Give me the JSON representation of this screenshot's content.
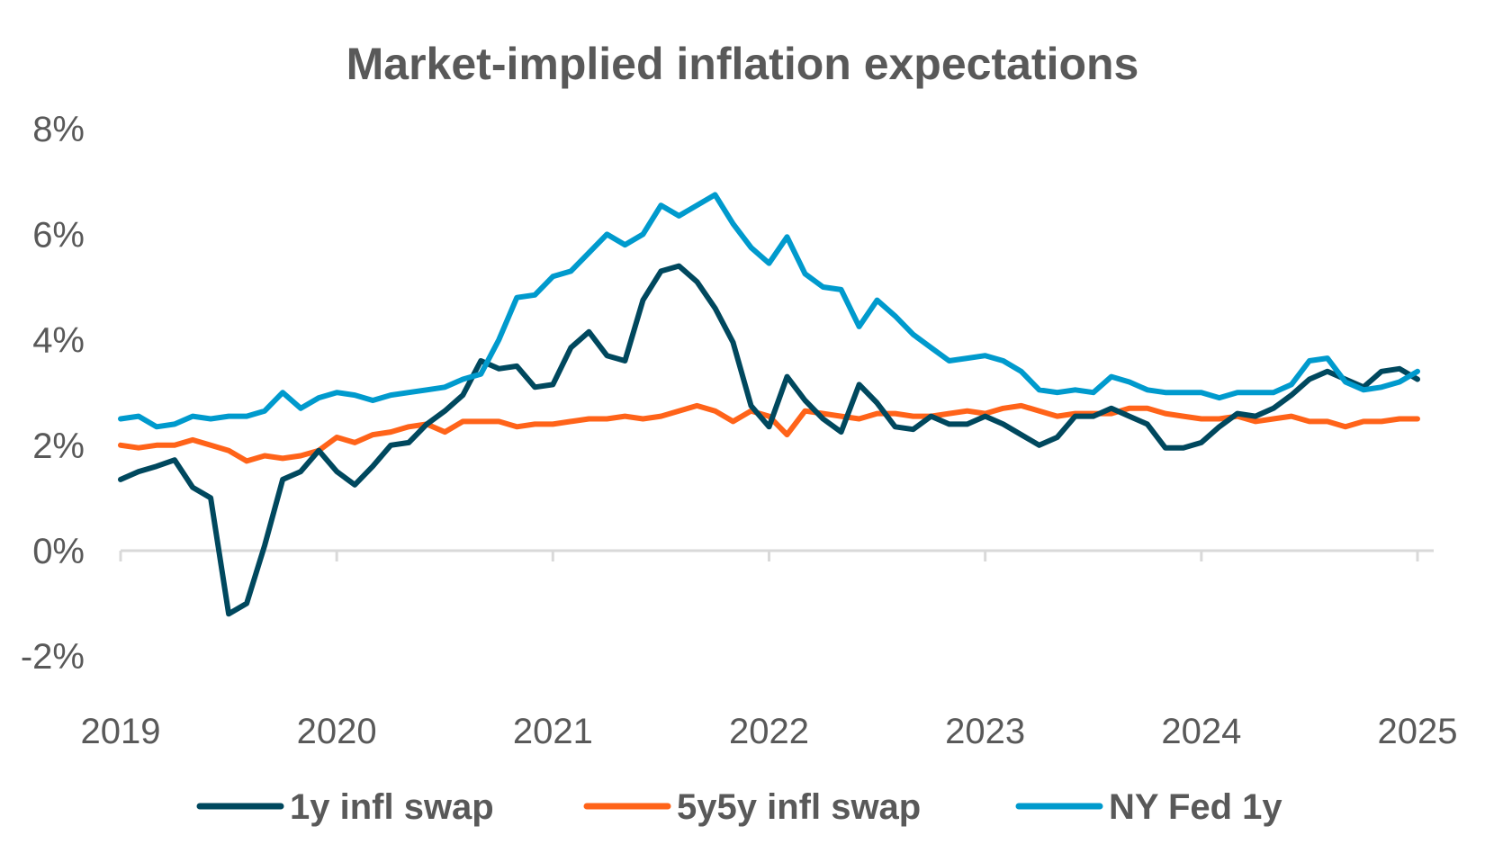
{
  "chart_data": {
    "type": "line",
    "title": "Market-implied inflation expectations",
    "xlabel": "",
    "ylabel": "",
    "x_start": "2019-01",
    "x_frequency": "monthly",
    "x_ticks": [
      "2019",
      "2020",
      "2021",
      "2022",
      "2023",
      "2024",
      "2025"
    ],
    "y_ticks": [
      "-2%",
      "0%",
      "2%",
      "4%",
      "6%",
      "8%"
    ],
    "ylim": [
      -2,
      8
    ],
    "y_unit": "%",
    "grid": false,
    "legend_position": "bottom",
    "series": [
      {
        "name": "1y infl swap",
        "color": "#00485E",
        "values": [
          1.35,
          1.5,
          1.6,
          1.72,
          1.2,
          1.0,
          -1.2,
          -1.0,
          0.1,
          1.35,
          1.5,
          1.9,
          1.5,
          1.25,
          1.6,
          2.0,
          2.05,
          2.4,
          2.65,
          2.95,
          3.6,
          3.45,
          3.5,
          3.1,
          3.15,
          3.85,
          4.15,
          3.7,
          3.6,
          4.75,
          5.3,
          5.4,
          5.1,
          4.6,
          3.95,
          2.75,
          2.35,
          3.3,
          2.85,
          2.5,
          2.25,
          3.15,
          2.8,
          2.35,
          2.3,
          2.55,
          2.4,
          2.4,
          2.55,
          2.4,
          2.2,
          2.0,
          2.15,
          2.55,
          2.55,
          2.7,
          2.55,
          2.4,
          1.95,
          1.95,
          2.05,
          2.35,
          2.6,
          2.55,
          2.7,
          2.95,
          3.25,
          3.4,
          3.25,
          3.1,
          3.4,
          3.45,
          3.25
        ]
      },
      {
        "name": "5y5y infl swap",
        "color": "#FF6319",
        "values": [
          2.0,
          1.95,
          2.0,
          2.0,
          2.1,
          2.0,
          1.9,
          1.7,
          1.8,
          1.75,
          1.8,
          1.9,
          2.15,
          2.05,
          2.2,
          2.25,
          2.35,
          2.4,
          2.25,
          2.45,
          2.45,
          2.45,
          2.35,
          2.4,
          2.4,
          2.45,
          2.5,
          2.5,
          2.55,
          2.5,
          2.55,
          2.65,
          2.75,
          2.65,
          2.45,
          2.65,
          2.55,
          2.2,
          2.65,
          2.6,
          2.55,
          2.5,
          2.6,
          2.6,
          2.55,
          2.55,
          2.6,
          2.65,
          2.6,
          2.7,
          2.75,
          2.65,
          2.55,
          2.6,
          2.6,
          2.6,
          2.7,
          2.7,
          2.6,
          2.55,
          2.5,
          2.5,
          2.55,
          2.45,
          2.5,
          2.55,
          2.45,
          2.45,
          2.35,
          2.45,
          2.45,
          2.5,
          2.5
        ]
      },
      {
        "name": "NY Fed 1y",
        "color": "#009ACD",
        "values": [
          2.5,
          2.55,
          2.35,
          2.4,
          2.55,
          2.5,
          2.55,
          2.55,
          2.65,
          3.0,
          2.7,
          2.9,
          3.0,
          2.95,
          2.85,
          2.95,
          3.0,
          3.05,
          3.1,
          3.25,
          3.35,
          4.0,
          4.8,
          4.85,
          5.2,
          5.3,
          5.65,
          6.0,
          5.8,
          6.0,
          6.55,
          6.35,
          6.55,
          6.75,
          6.2,
          5.75,
          5.45,
          5.95,
          5.25,
          5.0,
          4.95,
          4.25,
          4.75,
          4.45,
          4.1,
          3.85,
          3.6,
          3.65,
          3.7,
          3.6,
          3.4,
          3.05,
          3.0,
          3.05,
          3.0,
          3.3,
          3.2,
          3.05,
          3.0,
          3.0,
          3.0,
          2.9,
          3.0,
          3.0,
          3.0,
          3.15,
          3.6,
          3.65,
          3.2,
          3.05,
          3.1,
          3.2,
          3.4
        ]
      }
    ]
  }
}
